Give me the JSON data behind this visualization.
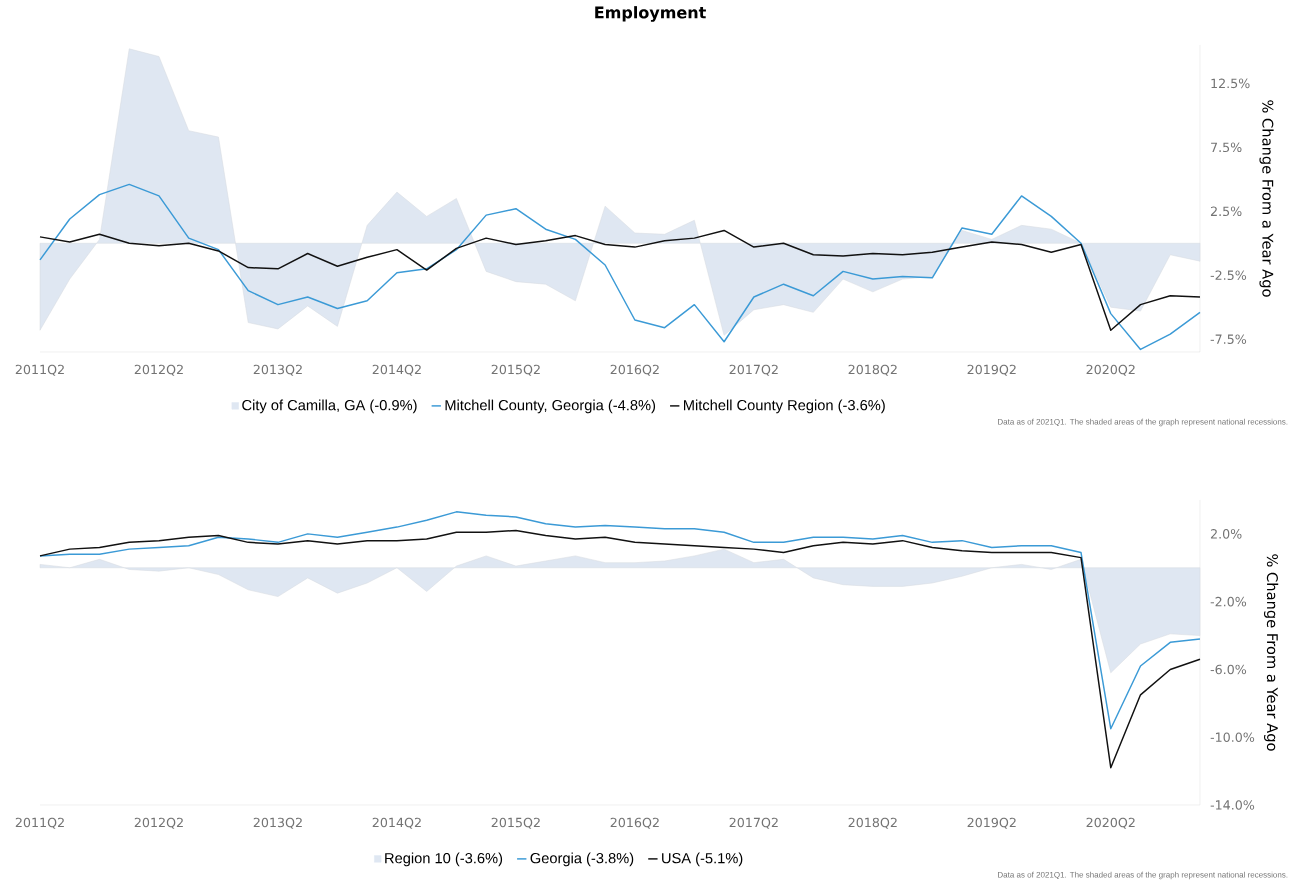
{
  "chart_data": [
    {
      "type": "line",
      "title": "Employment",
      "ylabel": "% Change From a Year Ago",
      "categories": [
        "2011Q2",
        null,
        null,
        null,
        "2012Q2",
        null,
        null,
        null,
        "2013Q2",
        null,
        null,
        null,
        "2014Q2",
        null,
        null,
        null,
        "2015Q2",
        null,
        null,
        null,
        "2016Q2",
        null,
        null,
        null,
        "2017Q2",
        null,
        null,
        null,
        "2018Q2",
        null,
        null,
        null,
        "2019Q2",
        null,
        null,
        null,
        "2020Q2",
        null,
        null,
        null
      ],
      "ylim": [
        -8.5,
        15.5
      ],
      "yticks": [
        {
          "value": -7.5,
          "label": "-7.5%"
        },
        {
          "value": -2.5,
          "label": "-2.5%"
        },
        {
          "value": 2.5,
          "label": "2.5%"
        },
        {
          "value": 7.5,
          "label": "7.5%"
        },
        {
          "value": 12.5,
          "label": "12.5%"
        }
      ],
      "legend": "bottom",
      "series": [
        {
          "name": "City of Camilla, GA (-0.9%)",
          "type": "area",
          "color": "#dfe7f2",
          "values": [
            -6.8,
            -2.8,
            0.3,
            15.2,
            14.6,
            8.8,
            8.3,
            -6.2,
            -6.7,
            -4.9,
            -6.5,
            1.4,
            4.0,
            2.1,
            3.5,
            -2.2,
            -3.0,
            -3.2,
            -4.5,
            2.9,
            0.8,
            0.7,
            1.8,
            -7.2,
            -5.2,
            -4.8,
            -5.4,
            -2.8,
            -3.8,
            -2.8,
            -2.6,
            1.0,
            0.3,
            1.4,
            1.1,
            0.0,
            -5.0,
            -5.3,
            -0.9,
            -1.4
          ]
        },
        {
          "name": "Mitchell County, Georgia (-4.8%)",
          "color": "#3b9ad6",
          "values": [
            -1.3,
            1.9,
            3.8,
            4.6,
            3.7,
            0.4,
            -0.5,
            -3.7,
            -4.8,
            -4.2,
            -5.1,
            -4.5,
            -2.3,
            -2.0,
            -0.5,
            2.2,
            2.7,
            1.1,
            0.3,
            -1.7,
            -6.0,
            -6.6,
            -4.8,
            -7.7,
            -4.2,
            -3.2,
            -4.1,
            -2.2,
            -2.8,
            -2.6,
            -2.7,
            1.2,
            0.7,
            3.7,
            2.1,
            0.0,
            -5.5,
            -8.3,
            -7.1,
            -5.4
          ]
        },
        {
          "name": "Mitchell County Region (-3.6%)",
          "color": "#111111",
          "values": [
            0.5,
            0.1,
            0.7,
            0.0,
            -0.2,
            0.0,
            -0.6,
            -1.9,
            -2.0,
            -0.8,
            -1.8,
            -1.1,
            -0.5,
            -2.1,
            -0.4,
            0.4,
            -0.1,
            0.2,
            0.6,
            -0.1,
            -0.3,
            0.2,
            0.4,
            1.0,
            -0.3,
            0.0,
            -0.9,
            -1.0,
            -0.8,
            -0.9,
            -0.7,
            -0.3,
            0.1,
            -0.1,
            -0.7,
            -0.1,
            -6.8,
            -4.8,
            -4.1,
            -4.2
          ]
        }
      ],
      "annotations": [
        "Data as of 2021Q1. The shaded areas of the graph represent national recessions."
      ]
    },
    {
      "type": "line",
      "ylabel": "% Change From a Year Ago",
      "categories": [
        "2011Q2",
        null,
        null,
        null,
        "2012Q2",
        null,
        null,
        null,
        "2013Q2",
        null,
        null,
        null,
        "2014Q2",
        null,
        null,
        null,
        "2015Q2",
        null,
        null,
        null,
        "2016Q2",
        null,
        null,
        null,
        "2017Q2",
        null,
        null,
        null,
        "2018Q2",
        null,
        null,
        null,
        "2019Q2",
        null,
        null,
        null,
        "2020Q2",
        null,
        null,
        null
      ],
      "ylim": [
        -14,
        4
      ],
      "yticks": [
        {
          "value": -14,
          "label": "-14.0%"
        },
        {
          "value": -10,
          "label": "-10.0%"
        },
        {
          "value": -6,
          "label": "-6.0%"
        },
        {
          "value": -2,
          "label": "-2.0%"
        },
        {
          "value": 2,
          "label": "2.0%"
        }
      ],
      "legend": "bottom",
      "series": [
        {
          "name": "Region 10 (-3.6%)",
          "type": "area",
          "color": "#dfe7f2",
          "values": [
            0.2,
            0.0,
            0.5,
            -0.1,
            -0.2,
            0.0,
            -0.4,
            -1.3,
            -1.7,
            -0.6,
            -1.5,
            -0.9,
            0.0,
            -1.4,
            0.1,
            0.7,
            0.1,
            0.4,
            0.7,
            0.3,
            0.3,
            0.4,
            0.7,
            1.1,
            0.3,
            0.5,
            -0.6,
            -1.0,
            -1.1,
            -1.1,
            -0.9,
            -0.5,
            0.0,
            0.2,
            -0.1,
            0.5,
            -6.2,
            -4.5,
            -3.9,
            -4.0
          ]
        },
        {
          "name": "Georgia (-3.8%)",
          "color": "#3b9ad6",
          "values": [
            0.7,
            0.8,
            0.8,
            1.1,
            1.2,
            1.3,
            1.8,
            1.7,
            1.5,
            2.0,
            1.8,
            2.1,
            2.4,
            2.8,
            3.3,
            3.1,
            3.0,
            2.6,
            2.4,
            2.5,
            2.4,
            2.3,
            2.3,
            2.1,
            1.5,
            1.5,
            1.8,
            1.8,
            1.7,
            1.9,
            1.5,
            1.6,
            1.2,
            1.3,
            1.3,
            0.9,
            -9.5,
            -5.8,
            -4.4,
            -4.2
          ]
        },
        {
          "name": "USA (-5.1%)",
          "color": "#111111",
          "values": [
            0.7,
            1.1,
            1.2,
            1.5,
            1.6,
            1.8,
            1.9,
            1.5,
            1.4,
            1.6,
            1.4,
            1.6,
            1.6,
            1.7,
            2.1,
            2.1,
            2.2,
            1.9,
            1.7,
            1.8,
            1.5,
            1.4,
            1.3,
            1.2,
            1.1,
            0.9,
            1.3,
            1.5,
            1.4,
            1.6,
            1.2,
            1.0,
            0.9,
            0.9,
            0.9,
            0.6,
            -11.8,
            -7.5,
            -6.0,
            -5.4
          ]
        }
      ],
      "annotations": [
        "Data as of 2021Q1. The shaded areas of the graph represent national recessions."
      ]
    }
  ]
}
